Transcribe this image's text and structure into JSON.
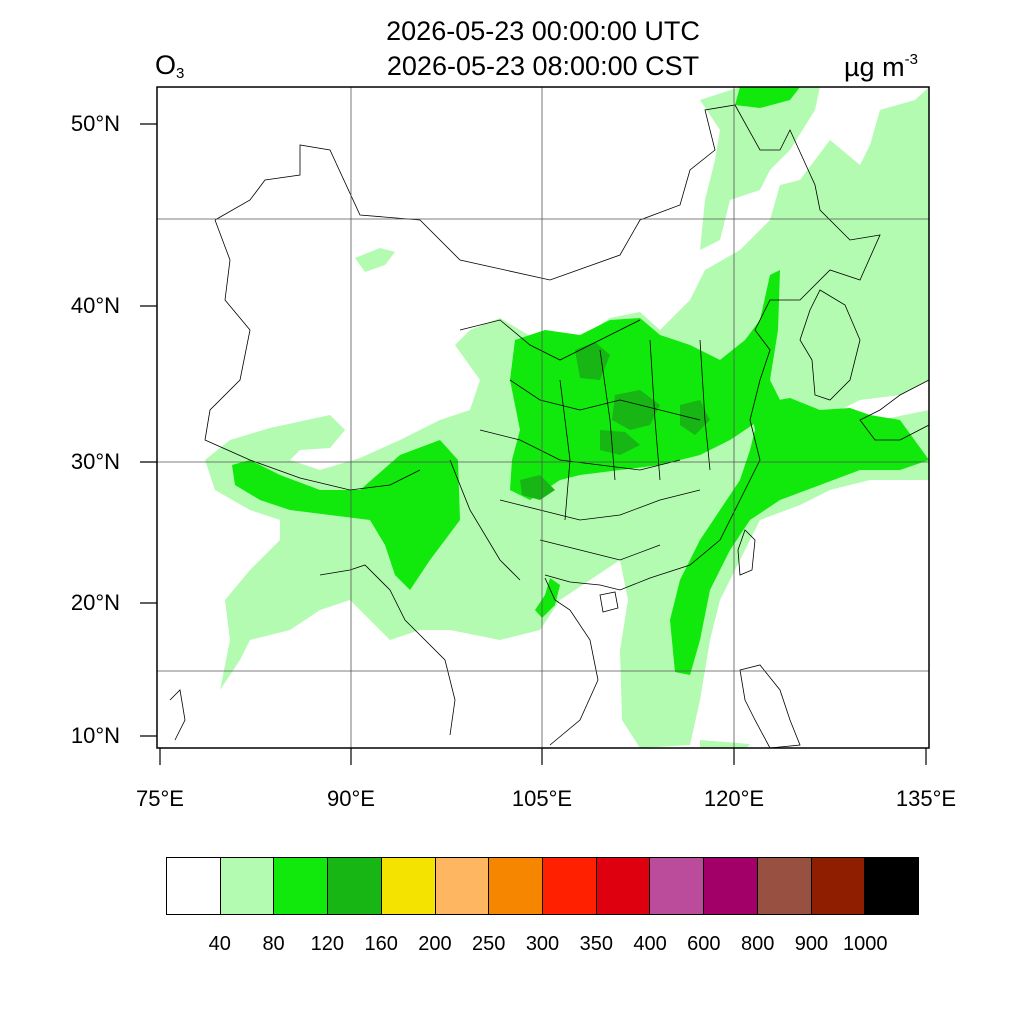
{
  "header": {
    "time_utc": "2026-05-23 00:00:00 UTC",
    "time_cst": "2026-05-23 08:00:00 CST",
    "variable_main": "O",
    "variable_sub": "3",
    "unit_main": "µg m",
    "unit_sup": "-3"
  },
  "map": {
    "lon_range": [
      75,
      135
    ],
    "lat_range": [
      9,
      52
    ],
    "lat_labels": [
      "50°N",
      "40°N",
      "30°N",
      "20°N",
      "10°N"
    ],
    "lon_labels": [
      "75°E",
      "90°E",
      "105°E",
      "120°E",
      "135°E"
    ],
    "colors": {
      "light_green": "#b3fbb0",
      "green": "#11e80b",
      "dark_green": "#17b614",
      "boundary": "#000000"
    }
  },
  "legend": {
    "colors": [
      "#ffffff",
      "#b3fbb0",
      "#11e80b",
      "#17b614",
      "#f4e200",
      "#ffb660",
      "#f68500",
      "#ff2000",
      "#de000f",
      "#bb4c9c",
      "#a20068",
      "#985141",
      "#8f1e00",
      "#000000"
    ],
    "ticks": [
      "40",
      "80",
      "120",
      "160",
      "200",
      "250",
      "300",
      "350",
      "400",
      "600",
      "800",
      "900",
      "1000"
    ]
  }
}
